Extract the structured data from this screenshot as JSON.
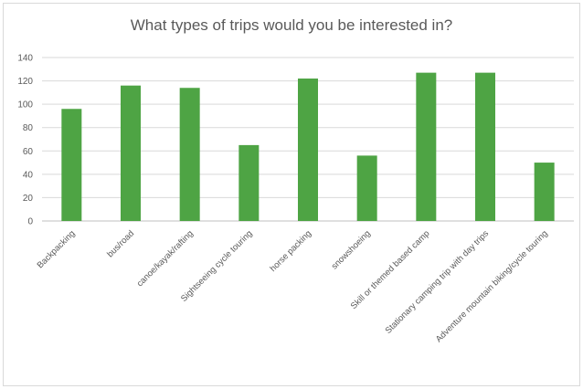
{
  "chart_data": {
    "type": "bar",
    "title": "What types of trips would you be interested in?",
    "xlabel": "",
    "ylabel": "",
    "ylim": [
      0,
      140
    ],
    "yticks": [
      0,
      20,
      40,
      60,
      80,
      100,
      120,
      140
    ],
    "categories": [
      "Backpacking",
      "bus/road",
      "canoe/kayak/rafting",
      "Sightseeing cycle touring",
      "horse packing",
      "snowshoeing",
      "Skill or themed based camp",
      "Stationary camping trip with day trips",
      "Adventure mountain biking/cycle touring"
    ],
    "values": [
      96,
      116,
      114,
      65,
      122,
      56,
      127,
      127,
      50
    ],
    "grid": true,
    "legend": "none",
    "bar_color": "#4ea444"
  }
}
